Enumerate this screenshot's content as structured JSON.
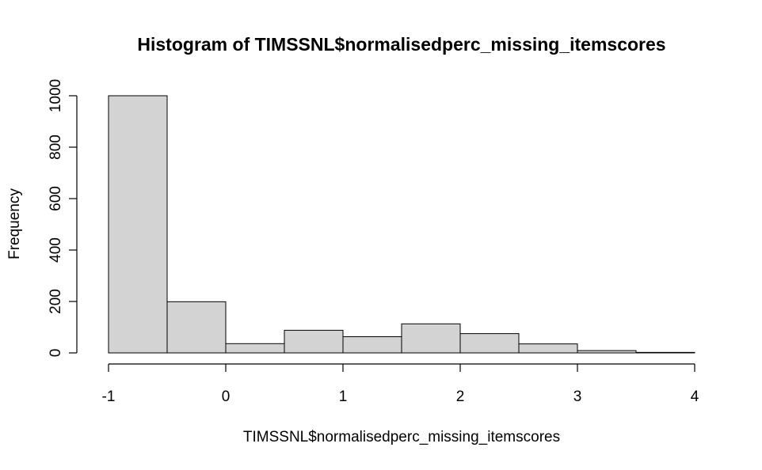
{
  "chart_data": {
    "type": "bar",
    "title": "Histogram of TIMSSNL$normalisedperc_missing_itemscores",
    "xlabel": "TIMSSNL$normalisedperc_missing_itemscores",
    "ylabel": "Frequency",
    "bins": [
      {
        "x0": -1.0,
        "x1": -0.5,
        "count": 1000
      },
      {
        "x0": -0.5,
        "x1": 0.0,
        "count": 199
      },
      {
        "x0": 0.0,
        "x1": 0.5,
        "count": 36
      },
      {
        "x0": 0.5,
        "x1": 1.0,
        "count": 88
      },
      {
        "x0": 1.0,
        "x1": 1.5,
        "count": 63
      },
      {
        "x0": 1.5,
        "x1": 2.0,
        "count": 113
      },
      {
        "x0": 2.0,
        "x1": 2.5,
        "count": 75
      },
      {
        "x0": 2.5,
        "x1": 3.0,
        "count": 35
      },
      {
        "x0": 3.0,
        "x1": 3.5,
        "count": 9
      },
      {
        "x0": 3.5,
        "x1": 4.0,
        "count": 2
      }
    ],
    "xlim": [
      -1,
      4
    ],
    "ylim": [
      0,
      1000
    ],
    "x_ticks": [
      "-1",
      "0",
      "1",
      "2",
      "3",
      "4"
    ],
    "y_ticks": [
      "0",
      "200",
      "400",
      "600",
      "800",
      "1000"
    ],
    "bar_fill": "#d3d3d3",
    "bar_stroke": "#000000",
    "grid": false,
    "legend": "none"
  }
}
